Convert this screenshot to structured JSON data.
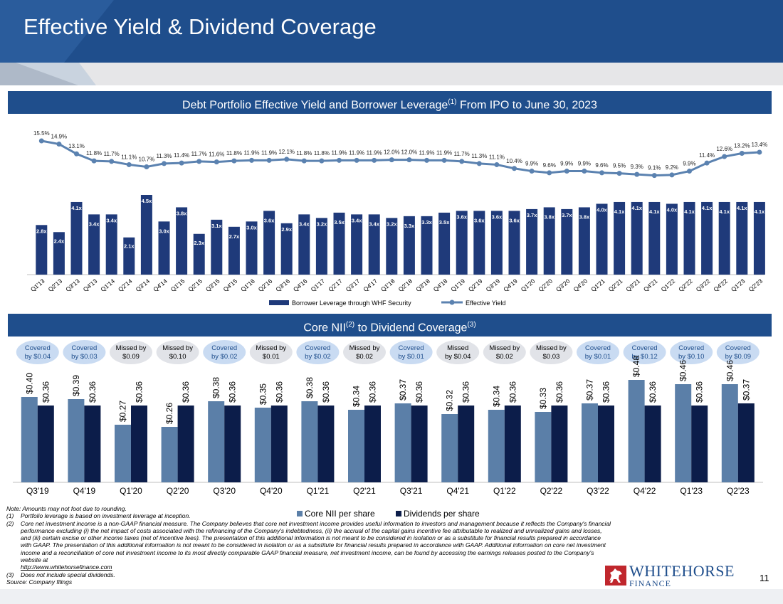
{
  "title": "Effective Yield & Dividend Coverage",
  "colors": {
    "header": "#1f4e8c",
    "bar_dark": "#1f3a7a",
    "line": "#5b82b0",
    "nii": "#5b7fa8",
    "div": "#0c1d4a",
    "bubble_cov": "#c9dbf2",
    "bubble_miss": "#e1e3e8"
  },
  "section1": {
    "pre": "Debt Portfolio Effective Yield and Borrower Leverage",
    "sup": "(1)",
    "post": " From IPO to June 30, 2023"
  },
  "section2": {
    "pre": "Core NII",
    "sup": "(2)",
    "post": " to Dividend Coverage",
    "sup2": "(3)"
  },
  "chart_data": [
    {
      "type": "bar+line",
      "title": "Debt Portfolio Effective Yield and Borrower Leverage From IPO to June 30, 2023",
      "categories": [
        "Q1'13",
        "Q2'13",
        "Q3'13",
        "Q4'13",
        "Q1'14",
        "Q2'14",
        "Q3'14",
        "Q4'14",
        "Q1'15",
        "Q2'15",
        "Q3'15",
        "Q4'15",
        "Q1'16",
        "Q2'16",
        "Q3'16",
        "Q4'16",
        "Q1'17",
        "Q2'17",
        "Q3'17",
        "Q4'17",
        "Q1'18",
        "Q2'18",
        "Q3'18",
        "Q4'18",
        "Q1'19",
        "Q2'19",
        "Q3'19",
        "Q4'19",
        "Q1'20",
        "Q2'20",
        "Q3'20",
        "Q4'20",
        "Q1'21",
        "Q2'21",
        "Q3'21",
        "Q4'21",
        "Q1'22",
        "Q2'22",
        "Q3'22",
        "Q4'22",
        "Q1'23",
        "Q2'23"
      ],
      "series": [
        {
          "name": "Borrower Leverage through WHF Security",
          "type": "bar",
          "values": [
            2.8,
            2.4,
            4.1,
            3.4,
            3.4,
            2.1,
            4.5,
            3.0,
            3.8,
            2.3,
            3.1,
            2.7,
            3.0,
            3.6,
            2.9,
            3.4,
            3.2,
            3.5,
            3.4,
            3.4,
            3.2,
            3.3,
            3.3,
            3.5,
            3.6,
            3.6,
            3.6,
            3.6,
            3.7,
            3.8,
            3.7,
            3.8,
            4.0,
            4.1,
            4.1,
            4.1,
            4.0,
            4.1,
            4.1,
            4.1,
            4.1,
            4.1
          ],
          "labels": [
            "2.8x",
            "2.4x",
            "4.1x",
            "3.4x",
            "3.4x",
            "2.1x",
            "4.5x",
            "3.0x",
            "3.8x",
            "2.3x",
            "3.1x",
            "2.7x",
            "3.0x",
            "3.6x",
            "2.9x",
            "3.4x",
            "3.2x",
            "3.5x",
            "3.4x",
            "3.4x",
            "3.2x",
            "3.3x",
            "3.3x",
            "3.5x",
            "3.6x",
            "3.6x",
            "3.6x",
            "3.6x",
            "3.7x",
            "3.8x",
            "3.7x",
            "3.8x",
            "4.0x",
            "4.1x",
            "4.1x",
            "4.1x",
            "4.0x",
            "4.1x",
            "4.1x",
            "4.1x",
            "4.1x",
            "4.1x"
          ]
        },
        {
          "name": "Effective Yield",
          "type": "line",
          "values": [
            15.5,
            14.9,
            13.1,
            11.8,
            11.7,
            11.1,
            10.7,
            11.3,
            11.4,
            11.7,
            11.6,
            11.8,
            11.9,
            11.9,
            12.1,
            11.8,
            11.8,
            11.9,
            11.9,
            11.9,
            12.0,
            12.0,
            11.9,
            11.9,
            11.7,
            11.3,
            11.1,
            10.4,
            9.9,
            9.6,
            9.9,
            9.9,
            9.6,
            9.5,
            9.3,
            9.1,
            9.2,
            9.9,
            11.4,
            12.6,
            13.2,
            13.4
          ],
          "labels": [
            "15.5%",
            "14.9%",
            "13.1%",
            "11.8%",
            "11.7%",
            "11.1%",
            "10.7%",
            "11.3%",
            "11.4%",
            "11.7%",
            "11.6%",
            "11.8%",
            "11.9%",
            "11.9%",
            "12.1%",
            "11.8%",
            "11.8%",
            "11.9%",
            "11.9%",
            "11.9%",
            "12.0%",
            "12.0%",
            "11.9%",
            "11.9%",
            "11.7%",
            "11.3%",
            "11.1%",
            "10.4%",
            "9.9%",
            "9.6%",
            "9.9%",
            "9.9%",
            "9.6%",
            "9.5%",
            "9.3%",
            "9.1%",
            "9.2%",
            "9.9%",
            "11.4%",
            "12.6%",
            "13.2%",
            "13.4%"
          ]
        }
      ],
      "legend": [
        "Borrower Leverage through WHF Security",
        "Effective Yield"
      ],
      "legend_position": "bottom"
    },
    {
      "type": "bar",
      "title": "Core NII to Dividend Coverage",
      "categories": [
        "Q3'19",
        "Q4'19",
        "Q1'20",
        "Q2'20",
        "Q3'20",
        "Q4'20",
        "Q1'21",
        "Q2'21",
        "Q3'21",
        "Q4'21",
        "Q1'22",
        "Q2'22",
        "Q3'22",
        "Q4'22",
        "Q1'23",
        "Q2'23"
      ],
      "series": [
        {
          "name": "Core NII per share",
          "values": [
            0.4,
            0.39,
            0.27,
            0.26,
            0.38,
            0.35,
            0.38,
            0.34,
            0.37,
            0.32,
            0.34,
            0.33,
            0.37,
            0.48,
            0.46,
            0.46
          ],
          "labels": [
            "$0.40",
            "$0.39",
            "$0.27",
            "$0.26",
            "$0.38",
            "$0.35",
            "$0.38",
            "$0.34",
            "$0.37",
            "$0.32",
            "$0.34",
            "$0.33",
            "$0.37",
            "$0.48",
            "$0.46",
            "$0.46"
          ]
        },
        {
          "name": "Dividends per share",
          "values": [
            0.36,
            0.36,
            0.36,
            0.36,
            0.36,
            0.36,
            0.36,
            0.36,
            0.36,
            0.36,
            0.36,
            0.36,
            0.36,
            0.36,
            0.36,
            0.37
          ],
          "labels": [
            "$0.36",
            "$0.36",
            "$0.36",
            "$0.36",
            "$0.36",
            "$0.36",
            "$0.36",
            "$0.36",
            "$0.36",
            "$0.36",
            "$0.36",
            "$0.36",
            "$0.36",
            "$0.36",
            "$0.36",
            "$0.37"
          ]
        }
      ],
      "coverage": [
        {
          "l1": "Covered",
          "l2": "by $0.04",
          "covered": true
        },
        {
          "l1": "Covered",
          "l2": "by $0.03",
          "covered": true
        },
        {
          "l1": "Missed by",
          "l2": "$0.09",
          "covered": false
        },
        {
          "l1": "Missed by",
          "l2": "$0.10",
          "covered": false
        },
        {
          "l1": "Covered",
          "l2": "by $0.02",
          "covered": true
        },
        {
          "l1": "Missed by",
          "l2": "$0.01",
          "covered": false
        },
        {
          "l1": "Covered",
          "l2": "by $0.02",
          "covered": true
        },
        {
          "l1": "Missed by",
          "l2": "$0.02",
          "covered": false
        },
        {
          "l1": "Covered",
          "l2": "by $0.01",
          "covered": true
        },
        {
          "l1": "Missed",
          "l2": "by $0.04",
          "covered": false
        },
        {
          "l1": "Missed by",
          "l2": "$0.02",
          "covered": false
        },
        {
          "l1": "Missed by",
          "l2": "$0.03",
          "covered": false
        },
        {
          "l1": "Covered",
          "l2": "by $0.01",
          "covered": true
        },
        {
          "l1": "Covered",
          "l2": "by $0.12",
          "covered": true
        },
        {
          "l1": "Covered",
          "l2": "by $0.10",
          "covered": true
        },
        {
          "l1": "Covered",
          "l2": "by $0.09",
          "covered": true
        }
      ],
      "legend": [
        "Core NII per share",
        "Dividends per share"
      ],
      "legend_position": "bottom"
    }
  ],
  "notes": {
    "intro": "Note: Amounts may not foot due to rounding.",
    "items": [
      {
        "num": "(1)",
        "text": "Portfolio leverage is based on investment leverage at inception."
      },
      {
        "num": "(2)",
        "text": "Core net investment income is a non-GAAP financial measure. The Company believes that core net investment income provides useful information to investors and management because it reflects the Company's financial performance excluding (i) the net impact of costs associated with the refinancing of the Company's indebtedness, (ii) the accrual of the capital gains incentive fee attributable to realized and unrealized gains and losses, and (iii) certain excise or other income taxes (net of incentive fees). The presentation of this additional information is not meant to be considered in isolation or as a substitute for financial results prepared in accordance with GAAP. The presentation of this additional information is not meant to be considered in isolation or as a substitute for financial results prepared in accordance with GAAP. Additional information on core net investment income and a reconciliation of core net investment income to its most directly comparable GAAP financial measure, net investment income, can be found by accessing the earnings releases posted to the Company's website at",
        "link": "http://www.whitehorsefinance.com"
      },
      {
        "num": "(3)",
        "text": "Does not include special dividends."
      }
    ],
    "source": "Source: Company filings"
  },
  "logo": {
    "line1": "WHITEHORSE",
    "line2": "FINANCE"
  },
  "page_number": "11"
}
